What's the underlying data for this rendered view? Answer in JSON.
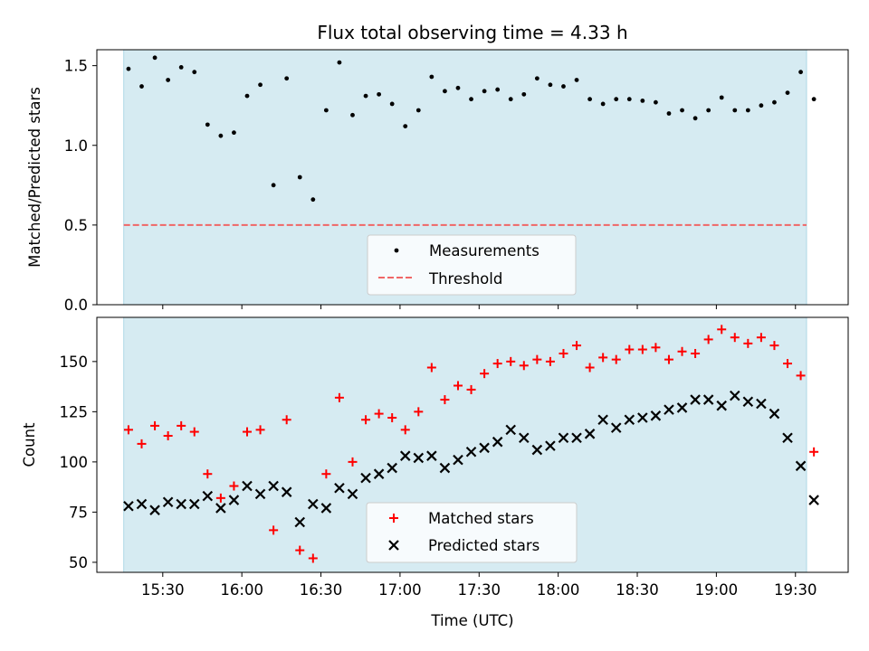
{
  "title": "Flux total observing time = 4.33 h",
  "colors": {
    "shade": "#add8e6",
    "measurement": "#000000",
    "threshold": "#f06666",
    "matched": "#ff0000",
    "predicted": "#000000"
  },
  "chart_data": [
    {
      "type": "scatter",
      "panel": "top",
      "xlabel": "",
      "ylabel": "Matched/Predicted stars",
      "ylim": [
        0,
        1.6
      ],
      "yticks": [
        0.0,
        0.5,
        1.0,
        1.5
      ],
      "ytick_labels": [
        "0.0",
        "0.5",
        "1.0",
        "1.5"
      ],
      "xlim": [
        0,
        285
      ],
      "grid": false,
      "legend": {
        "placement": "lower center",
        "entries": [
          "Measurements",
          "Threshold"
        ]
      },
      "shaded_span": [
        10.2,
        269.2
      ],
      "threshold": {
        "name": "Threshold",
        "value": 0.5,
        "x_start": 10.2,
        "x_end": 269.2,
        "style": "dashed"
      },
      "series": [
        {
          "name": "Measurements",
          "marker": "dot",
          "points": [
            [
              12,
              1.48
            ],
            [
              17,
              1.37
            ],
            [
              22,
              1.55
            ],
            [
              27,
              1.41
            ],
            [
              32,
              1.49
            ],
            [
              37,
              1.46
            ],
            [
              42,
              1.13
            ],
            [
              47,
              1.06
            ],
            [
              52,
              1.08
            ],
            [
              57,
              1.31
            ],
            [
              62,
              1.38
            ],
            [
              67,
              0.75
            ],
            [
              72,
              1.42
            ],
            [
              77,
              0.8
            ],
            [
              82,
              0.66
            ],
            [
              87,
              1.22
            ],
            [
              92,
              1.52
            ],
            [
              97,
              1.19
            ],
            [
              102,
              1.31
            ],
            [
              107,
              1.32
            ],
            [
              112,
              1.26
            ],
            [
              117,
              1.12
            ],
            [
              122,
              1.22
            ],
            [
              127,
              1.43
            ],
            [
              132,
              1.34
            ],
            [
              137,
              1.36
            ],
            [
              142,
              1.29
            ],
            [
              147,
              1.34
            ],
            [
              152,
              1.35
            ],
            [
              157,
              1.29
            ],
            [
              162,
              1.32
            ],
            [
              167,
              1.42
            ],
            [
              172,
              1.38
            ],
            [
              177,
              1.37
            ],
            [
              182,
              1.41
            ],
            [
              187,
              1.29
            ],
            [
              192,
              1.26
            ],
            [
              197,
              1.29
            ],
            [
              202,
              1.29
            ],
            [
              207,
              1.28
            ],
            [
              212,
              1.27
            ],
            [
              217,
              1.2
            ],
            [
              222,
              1.22
            ],
            [
              227,
              1.17
            ],
            [
              232,
              1.22
            ],
            [
              237,
              1.3
            ],
            [
              242,
              1.22
            ],
            [
              247,
              1.22
            ],
            [
              252,
              1.25
            ],
            [
              257,
              1.27
            ],
            [
              262,
              1.33
            ],
            [
              267,
              1.46
            ],
            [
              272,
              1.29
            ]
          ]
        }
      ]
    },
    {
      "type": "scatter",
      "panel": "bottom",
      "xlabel": "Time (UTC)",
      "ylabel": "Count",
      "ylim": [
        45,
        172
      ],
      "yticks": [
        50,
        75,
        100,
        125,
        150
      ],
      "ytick_labels": [
        "50",
        "75",
        "100",
        "125",
        "150"
      ],
      "xlim": [
        0,
        285
      ],
      "xticks": [
        25,
        55,
        85,
        115,
        145,
        175,
        205,
        235,
        265
      ],
      "xtick_labels": [
        "15:30",
        "16:00",
        "16:30",
        "17:00",
        "17:30",
        "18:00",
        "18:30",
        "19:00",
        "19:30"
      ],
      "grid": false,
      "legend": {
        "placement": "lower center",
        "entries": [
          "Matched stars",
          "Predicted stars"
        ]
      },
      "shaded_span": [
        10.2,
        269.2
      ],
      "series": [
        {
          "name": "Matched stars",
          "marker": "plus",
          "points": [
            [
              12,
              116
            ],
            [
              17,
              109
            ],
            [
              22,
              118
            ],
            [
              27,
              113
            ],
            [
              32,
              118
            ],
            [
              37,
              115
            ],
            [
              42,
              94
            ],
            [
              47,
              82
            ],
            [
              52,
              88
            ],
            [
              57,
              115
            ],
            [
              62,
              116
            ],
            [
              67,
              66
            ],
            [
              72,
              121
            ],
            [
              77,
              56
            ],
            [
              82,
              52
            ],
            [
              87,
              94
            ],
            [
              92,
              132
            ],
            [
              97,
              100
            ],
            [
              102,
              121
            ],
            [
              107,
              124
            ],
            [
              112,
              122
            ],
            [
              117,
              116
            ],
            [
              122,
              125
            ],
            [
              127,
              147
            ],
            [
              132,
              131
            ],
            [
              137,
              138
            ],
            [
              142,
              136
            ],
            [
              147,
              144
            ],
            [
              152,
              149
            ],
            [
              157,
              150
            ],
            [
              162,
              148
            ],
            [
              167,
              151
            ],
            [
              172,
              150
            ],
            [
              177,
              154
            ],
            [
              182,
              158
            ],
            [
              187,
              147
            ],
            [
              192,
              152
            ],
            [
              197,
              151
            ],
            [
              202,
              156
            ],
            [
              207,
              156
            ],
            [
              212,
              157
            ],
            [
              217,
              151
            ],
            [
              222,
              155
            ],
            [
              227,
              154
            ],
            [
              232,
              161
            ],
            [
              237,
              166
            ],
            [
              242,
              162
            ],
            [
              247,
              159
            ],
            [
              252,
              162
            ],
            [
              257,
              158
            ],
            [
              262,
              149
            ],
            [
              267,
              143
            ],
            [
              272,
              105
            ]
          ]
        },
        {
          "name": "Predicted stars",
          "marker": "x",
          "points": [
            [
              12,
              78
            ],
            [
              17,
              79
            ],
            [
              22,
              76
            ],
            [
              27,
              80
            ],
            [
              32,
              79
            ],
            [
              37,
              79
            ],
            [
              42,
              83
            ],
            [
              47,
              77
            ],
            [
              52,
              81
            ],
            [
              57,
              88
            ],
            [
              62,
              84
            ],
            [
              67,
              88
            ],
            [
              72,
              85
            ],
            [
              77,
              70
            ],
            [
              82,
              79
            ],
            [
              87,
              77
            ],
            [
              92,
              87
            ],
            [
              97,
              84
            ],
            [
              102,
              92
            ],
            [
              107,
              94
            ],
            [
              112,
              97
            ],
            [
              117,
              103
            ],
            [
              122,
              102
            ],
            [
              127,
              103
            ],
            [
              132,
              97
            ],
            [
              137,
              101
            ],
            [
              142,
              105
            ],
            [
              147,
              107
            ],
            [
              152,
              110
            ],
            [
              157,
              116
            ],
            [
              162,
              112
            ],
            [
              167,
              106
            ],
            [
              172,
              108
            ],
            [
              177,
              112
            ],
            [
              182,
              112
            ],
            [
              187,
              114
            ],
            [
              192,
              121
            ],
            [
              197,
              117
            ],
            [
              202,
              121
            ],
            [
              207,
              122
            ],
            [
              212,
              123
            ],
            [
              217,
              126
            ],
            [
              222,
              127
            ],
            [
              227,
              131
            ],
            [
              232,
              131
            ],
            [
              237,
              128
            ],
            [
              242,
              133
            ],
            [
              247,
              130
            ],
            [
              252,
              129
            ],
            [
              257,
              124
            ],
            [
              262,
              112
            ],
            [
              267,
              98
            ],
            [
              272,
              81
            ]
          ]
        }
      ]
    }
  ]
}
